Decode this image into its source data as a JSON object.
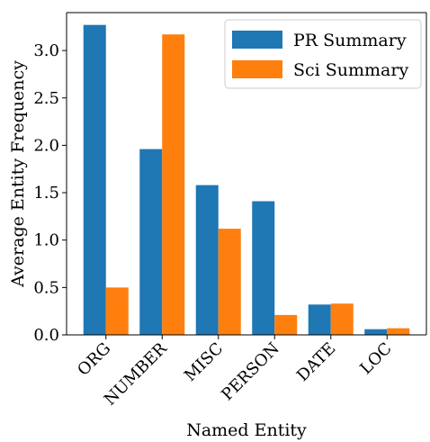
{
  "chart_data": {
    "type": "bar",
    "title": "",
    "xlabel": "Named Entity",
    "ylabel": "Average Entity Frequency",
    "categories": [
      "ORG",
      "NUMBER",
      "MISC",
      "PERSON",
      "DATE",
      "LOC"
    ],
    "series": [
      {
        "name": "PR Summary",
        "color": "#1f77b4",
        "values": [
          3.27,
          1.96,
          1.58,
          1.41,
          0.32,
          0.06
        ]
      },
      {
        "name": "Sci Summary",
        "color": "#ff7f0e",
        "values": [
          0.5,
          3.17,
          1.12,
          0.21,
          0.33,
          0.07
        ]
      }
    ],
    "ylim": [
      0,
      3.4
    ],
    "yticks": [
      0.0,
      0.5,
      1.0,
      1.5,
      2.0,
      2.5,
      3.0
    ],
    "ytick_labels": [
      "0.0",
      "0.5",
      "1.0",
      "1.5",
      "2.0",
      "2.5",
      "3.0"
    ],
    "legend_position": "top-right",
    "grid": false
  }
}
